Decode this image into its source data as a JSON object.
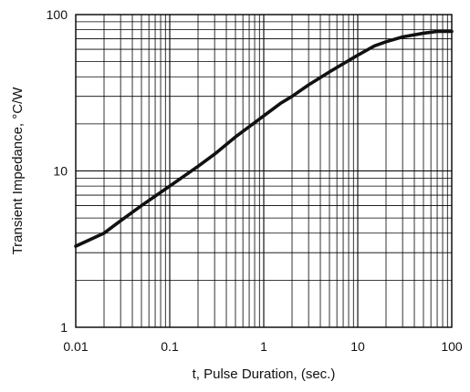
{
  "chart_data": {
    "type": "line",
    "title": "",
    "xlabel": "t, Pulse Duration, (sec.)",
    "ylabel": "Transient Impedance, °C/W",
    "xscale": "log",
    "yscale": "log",
    "xlim": [
      0.01,
      100
    ],
    "ylim": [
      1,
      100
    ],
    "grid": true,
    "xticks": [
      "0.01",
      "0.1",
      "1",
      "10",
      "100"
    ],
    "yticks": [
      "1",
      "10",
      "100"
    ],
    "series": [
      {
        "name": "",
        "color": "#111111",
        "x": [
          0.01,
          0.02,
          0.03,
          0.05,
          0.1,
          0.2,
          0.3,
          0.5,
          1,
          1.5,
          2,
          3,
          5,
          7,
          10,
          15,
          20,
          30,
          50,
          70,
          100
        ],
        "y": [
          3.3,
          4.0,
          4.8,
          6.0,
          8.0,
          10.7,
          12.8,
          16.5,
          22.5,
          27.0,
          30.0,
          35.5,
          43.0,
          48.5,
          55.0,
          63.0,
          67.0,
          72.0,
          76.0,
          78.0,
          78.0
        ]
      }
    ]
  }
}
